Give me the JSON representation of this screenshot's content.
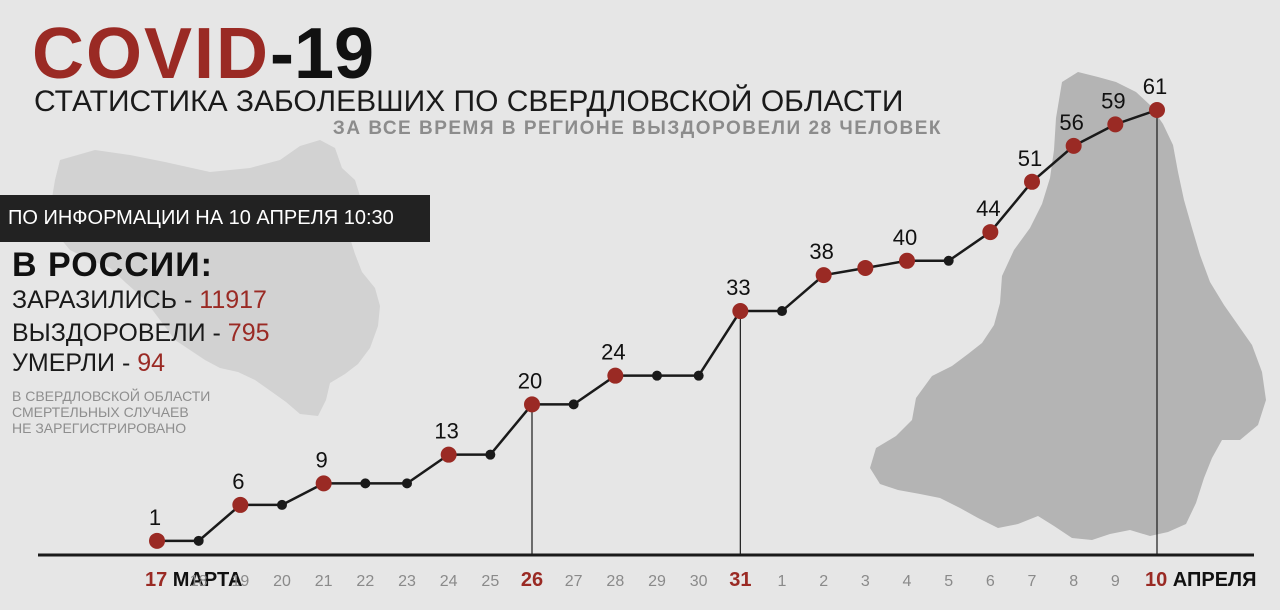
{
  "header": {
    "title_covid": "COVID",
    "title_num": "-19",
    "subtitle": "СТАТИСТИКА ЗАБОЛЕВШИХ ПО СВЕРДЛОВСКОЙ ОБЛАСТИ",
    "subtitle2": "ЗА ВСЕ ВРЕМЯ В РЕГИОНЕ ВЫЗДОРОВЕЛИ 28 ЧЕЛОВЕК"
  },
  "info": {
    "as_of": "ПО ИНФОРМАЦИИ НА 10 АПРЕЛЯ 10:30"
  },
  "russia": {
    "heading": "В РОССИИ:",
    "infected_label": "ЗАРАЗИЛИСЬ - ",
    "infected_value": "11917",
    "recovered_label": "ВЫЗДОРОВЕЛИ - ",
    "recovered_value": "795",
    "died_label": "УМЕРЛИ - ",
    "died_value": "94"
  },
  "note": {
    "line1": "В СВЕРДЛОВСКОЙ ОБЛАСТИ",
    "line2": "СМЕРТЕЛЬНЫХ СЛУЧАЕВ",
    "line3": "НЕ ЗАРЕГИСТРИРОВАНО"
  },
  "colors": {
    "accent": "#9a2a24",
    "line": "#1a1a1a",
    "background": "#e6e6e6",
    "map": "#b4b4b4",
    "tick_text": "#8a8a8a"
  },
  "chart_data": {
    "type": "line",
    "x_labels": [
      "17",
      "18",
      "19",
      "20",
      "21",
      "22",
      "23",
      "24",
      "25",
      "26",
      "27",
      "28",
      "29",
      "30",
      "31",
      "1",
      "2",
      "3",
      "4",
      "5",
      "6",
      "7",
      "8",
      "9",
      "10"
    ],
    "values": [
      1,
      1,
      6,
      6,
      9,
      9,
      9,
      13,
      13,
      20,
      20,
      24,
      24,
      24,
      33,
      33,
      38,
      39,
      40,
      40,
      44,
      51,
      56,
      59,
      61
    ],
    "data_labels": [
      "1",
      "",
      "6",
      "",
      "9",
      "",
      "",
      "13",
      "",
      "20",
      "",
      "24",
      "",
      "",
      "33",
      "",
      "38",
      "",
      "40",
      "",
      "44",
      "51",
      "56",
      "59",
      "61"
    ],
    "highlight": [
      true,
      false,
      true,
      false,
      true,
      false,
      false,
      true,
      false,
      true,
      false,
      true,
      false,
      false,
      true,
      false,
      true,
      true,
      true,
      false,
      true,
      true,
      true,
      true,
      true
    ],
    "bold_ticks": {
      "0": "МАРТА",
      "9": "",
      "14": "",
      "24": "АПРЕЛЯ"
    },
    "vertical_markers": [
      9,
      14,
      24
    ],
    "ylim": [
      0,
      61
    ],
    "grid": false,
    "legend": "none"
  }
}
